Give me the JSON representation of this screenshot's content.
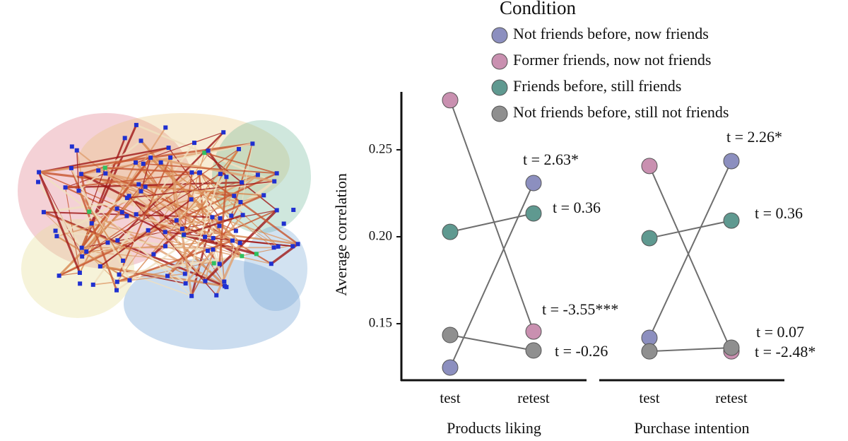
{
  "chart_data": {
    "type": "line",
    "ylabel": "Average correlation",
    "legend_title": "Condition",
    "ylim": [
      0.1175,
      0.2833
    ],
    "yticks": [
      0.15,
      {
        "value": 0.2,
        "label": "0.20"
      },
      0.25
    ],
    "categories": [
      "test",
      "retest"
    ],
    "line_color": "#6e6e6e",
    "series": [
      {
        "name": "Not friends before, now friends",
        "color": "#8c8fbf"
      },
      {
        "name": "Former friends, now not friends",
        "color": "#c990b0"
      },
      {
        "name": "Friends before, still friends",
        "color": "#5f9990"
      },
      {
        "name": "Not friends before, still not friends",
        "color": "#8f8f8f"
      }
    ],
    "panels": [
      {
        "xlabel": "Products liking",
        "values": [
          [
            0.1248,
            0.2309
          ],
          [
            0.2785,
            0.1455
          ],
          [
            0.2028,
            0.2134
          ],
          [
            0.1435,
            0.1346
          ]
        ],
        "annotations": [
          "t = 2.63*",
          "t = -3.55***",
          "t = 0.36",
          "t = -0.26"
        ]
      },
      {
        "xlabel": "Purchase intention",
        "values": [
          [
            0.1419,
            0.2435
          ],
          [
            0.2407,
            0.1341
          ],
          [
            0.1992,
            0.2093
          ],
          [
            0.1341,
            0.1362
          ]
        ],
        "annotations": [
          "t = 2.26*",
          "t = -2.48*",
          "t = 0.36",
          "t = 0.07"
        ]
      }
    ]
  }
}
